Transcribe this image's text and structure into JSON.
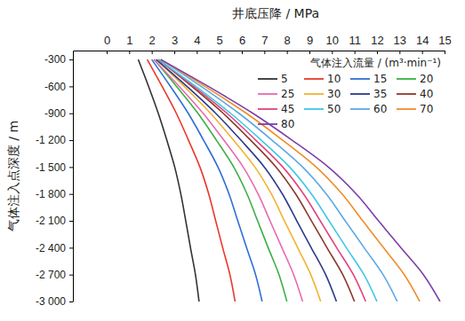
{
  "chart_data": {
    "type": "line",
    "x_label": "井底压降 / MPa",
    "y_label": "气体注入点深度 / m",
    "legend_title": "气体注入流量 / (m³·min⁻¹)",
    "legend": "top-right",
    "grid": false,
    "xlim": [
      -1.5,
      15
    ],
    "xticks": [
      0,
      1,
      2,
      3,
      4,
      5,
      6,
      7,
      8,
      9,
      10,
      11,
      12,
      13,
      14,
      15
    ],
    "ylim": [
      -3000,
      -200
    ],
    "yticks": [
      -300,
      -600,
      -900,
      {
        "value": -1200,
        "label": "-1 200"
      },
      {
        "value": -1500,
        "label": "-1 500"
      },
      {
        "value": -1800,
        "label": "-1 800"
      },
      {
        "value": -2100,
        "label": "-2 100"
      },
      {
        "value": -2400,
        "label": "-2 400"
      },
      {
        "value": -2700,
        "label": "-2 700"
      },
      {
        "value": -3000,
        "label": "-3 000"
      }
    ],
    "series": [
      {
        "name": "5",
        "color": "#333333",
        "x": [
          1.4,
          1.86,
          2.29,
          2.67,
          3.02,
          3.29,
          3.51,
          3.72,
          3.94,
          4.1
        ],
        "values": [
          -300,
          -600,
          -900,
          -1200,
          -1500,
          -1800,
          -2100,
          -2400,
          -2700,
          -3000
        ]
      },
      {
        "name": "10",
        "color": "#e8392b",
        "x": [
          1.8,
          2.46,
          3.09,
          3.63,
          4.14,
          4.53,
          4.84,
          5.15,
          5.47,
          5.7
        ],
        "values": [
          -300,
          -600,
          -900,
          -1200,
          -1500,
          -1800,
          -2100,
          -2400,
          -2700,
          -3000
        ]
      },
      {
        "name": "15",
        "color": "#2f6fd6",
        "x": [
          2.0,
          2.83,
          3.62,
          4.3,
          4.94,
          5.43,
          5.82,
          6.21,
          6.61,
          6.9
        ],
        "values": [
          -300,
          -600,
          -900,
          -1200,
          -1500,
          -1800,
          -2100,
          -2400,
          -2700,
          -3000
        ]
      },
      {
        "name": "20",
        "color": "#3cb043",
        "x": [
          2.1,
          3.1,
          4.05,
          4.87,
          5.64,
          6.23,
          6.7,
          7.17,
          7.65,
          8.0
        ],
        "values": [
          -300,
          -600,
          -900,
          -1200,
          -1500,
          -1800,
          -2100,
          -2400,
          -2700,
          -3000
        ]
      },
      {
        "name": "25",
        "color": "#e86ab0",
        "x": [
          2.1,
          3.22,
          4.28,
          5.2,
          6.06,
          6.72,
          7.25,
          7.78,
          8.3,
          8.7
        ],
        "values": [
          -300,
          -600,
          -900,
          -1200,
          -1500,
          -1800,
          -2100,
          -2400,
          -2700,
          -3000
        ]
      },
      {
        "name": "30",
        "color": "#f2b233",
        "x": [
          2.2,
          3.44,
          4.61,
          5.63,
          6.58,
          7.31,
          7.89,
          8.48,
          9.06,
          9.5
        ],
        "values": [
          -300,
          -600,
          -900,
          -1200,
          -1500,
          -1800,
          -2100,
          -2400,
          -2700,
          -3000
        ]
      },
      {
        "name": "35",
        "color": "#2b3a8c",
        "x": [
          2.2,
          3.56,
          4.84,
          5.96,
          7.0,
          7.8,
          8.44,
          9.08,
          9.72,
          10.2
        ],
        "values": [
          -300,
          -600,
          -900,
          -1200,
          -1500,
          -1800,
          -2100,
          -2400,
          -2700,
          -3000
        ]
      },
      {
        "name": "40",
        "color": "#8b3a2a",
        "x": [
          2.3,
          3.78,
          5.17,
          6.39,
          7.52,
          8.39,
          9.09,
          9.78,
          10.48,
          11.0
        ],
        "values": [
          -300,
          -600,
          -900,
          -1200,
          -1500,
          -1800,
          -2100,
          -2400,
          -2700,
          -3000
        ]
      },
      {
        "name": "45",
        "color": "#e0457b",
        "x": [
          2.3,
          3.86,
          5.34,
          6.62,
          7.82,
          8.74,
          9.48,
          10.21,
          10.95,
          11.5
        ],
        "values": [
          -300,
          -600,
          -900,
          -1200,
          -1500,
          -1800,
          -2100,
          -2400,
          -2700,
          -3000
        ]
      },
      {
        "name": "50",
        "color": "#3ec7e8",
        "x": [
          2.3,
          3.95,
          5.5,
          6.86,
          8.12,
          9.09,
          9.87,
          10.64,
          11.42,
          12.0
        ],
        "values": [
          -300,
          -600,
          -900,
          -1200,
          -1500,
          -1800,
          -2100,
          -2400,
          -2700,
          -3000
        ]
      },
      {
        "name": "60",
        "color": "#5ea8e6",
        "x": [
          2.4,
          4.19,
          5.87,
          7.34,
          8.7,
          9.75,
          10.59,
          11.43,
          12.27,
          12.9
        ],
        "values": [
          -300,
          -600,
          -900,
          -1200,
          -1500,
          -1800,
          -2100,
          -2400,
          -2700,
          -3000
        ]
      },
      {
        "name": "70",
        "color": "#f28c28",
        "x": [
          2.4,
          4.36,
          6.2,
          7.81,
          9.3,
          10.45,
          11.37,
          12.29,
          13.21,
          13.9
        ],
        "values": [
          -300,
          -600,
          -900,
          -1200,
          -1500,
          -1800,
          -2100,
          -2400,
          -2700,
          -3000
        ]
      },
      {
        "name": "80",
        "color": "#7b3fa6",
        "x": [
          2.4,
          4.51,
          6.49,
          8.23,
          9.84,
          11.08,
          12.07,
          13.06,
          14.06,
          14.8
        ],
        "values": [
          -300,
          -600,
          -900,
          -1200,
          -1500,
          -1800,
          -2100,
          -2400,
          -2700,
          -3000
        ]
      }
    ]
  }
}
